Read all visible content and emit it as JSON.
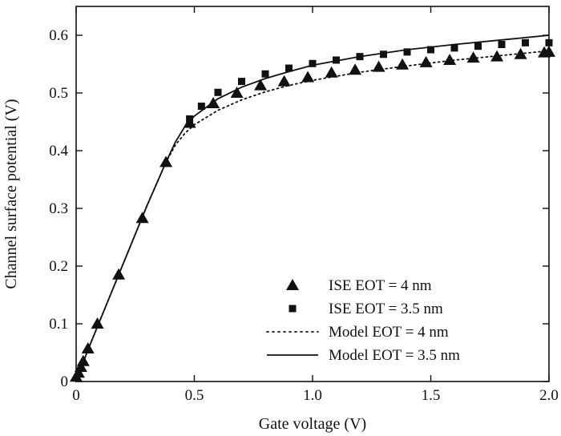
{
  "chart_data": {
    "type": "line",
    "xlabel": "Gate voltage (V)",
    "ylabel": "Channel surface potential (V)",
    "xlim": [
      0,
      2.0
    ],
    "ylim": [
      0,
      0.65
    ],
    "x_ticks": [
      0,
      0.5,
      1.0,
      1.5,
      2.0
    ],
    "x_tick_labels": [
      "0",
      "0.5",
      "1.0",
      "1.5",
      "2.0"
    ],
    "y_ticks": [
      0,
      0.1,
      0.2,
      0.3,
      0.4,
      0.5,
      0.6
    ],
    "y_tick_labels": [
      "0",
      "0.1",
      "0.2",
      "0.3",
      "0.4",
      "0.5",
      "0.6"
    ],
    "grid": false,
    "legend_position": "bottom-right",
    "series": [
      {
        "name": "ISE EOT = 4 nm",
        "kind": "scatter",
        "marker": "triangle",
        "x": [
          0.0,
          0.01,
          0.02,
          0.03,
          0.05,
          0.09,
          0.18,
          0.28,
          0.38,
          0.48,
          0.58,
          0.68,
          0.78,
          0.88,
          0.98,
          1.08,
          1.18,
          1.28,
          1.38,
          1.48,
          1.58,
          1.68,
          1.78,
          1.88,
          1.98,
          2.0
        ],
        "y": [
          0.008,
          0.015,
          0.025,
          0.035,
          0.057,
          0.1,
          0.185,
          0.283,
          0.38,
          0.448,
          0.482,
          0.5,
          0.513,
          0.52,
          0.527,
          0.535,
          0.54,
          0.545,
          0.549,
          0.553,
          0.557,
          0.561,
          0.563,
          0.567,
          0.57,
          0.571
        ]
      },
      {
        "name": "ISE EOT = 3.5 nm",
        "kind": "scatter",
        "marker": "square",
        "x": [
          0.48,
          0.53,
          0.6,
          0.7,
          0.8,
          0.9,
          1.0,
          1.1,
          1.2,
          1.3,
          1.4,
          1.5,
          1.6,
          1.7,
          1.8,
          1.9,
          2.0
        ],
        "y": [
          0.455,
          0.477,
          0.501,
          0.52,
          0.533,
          0.543,
          0.551,
          0.557,
          0.563,
          0.567,
          0.571,
          0.575,
          0.578,
          0.581,
          0.584,
          0.587,
          0.587
        ]
      },
      {
        "name": "Model EOT = 4 nm",
        "kind": "line",
        "style": "dotted",
        "x": [
          0.0,
          0.05,
          0.1,
          0.2,
          0.3,
          0.38,
          0.42,
          0.46,
          0.5,
          0.6,
          0.7,
          0.8,
          0.9,
          1.0,
          1.2,
          1.4,
          1.6,
          1.8,
          2.0
        ],
        "y": [
          0.0,
          0.055,
          0.105,
          0.205,
          0.305,
          0.38,
          0.41,
          0.43,
          0.445,
          0.47,
          0.488,
          0.502,
          0.513,
          0.522,
          0.536,
          0.547,
          0.557,
          0.565,
          0.573
        ]
      },
      {
        "name": "Model EOT = 3.5 nm",
        "kind": "line",
        "style": "solid",
        "x": [
          0.0,
          0.05,
          0.1,
          0.2,
          0.3,
          0.38,
          0.42,
          0.46,
          0.5,
          0.6,
          0.7,
          0.8,
          0.9,
          1.0,
          1.2,
          1.4,
          1.6,
          1.8,
          2.0
        ],
        "y": [
          0.0,
          0.055,
          0.105,
          0.205,
          0.305,
          0.38,
          0.415,
          0.442,
          0.46,
          0.49,
          0.51,
          0.525,
          0.537,
          0.548,
          0.563,
          0.575,
          0.584,
          0.592,
          0.6
        ]
      }
    ]
  },
  "colors": {
    "ink": "#111111",
    "background": "#ffffff"
  }
}
